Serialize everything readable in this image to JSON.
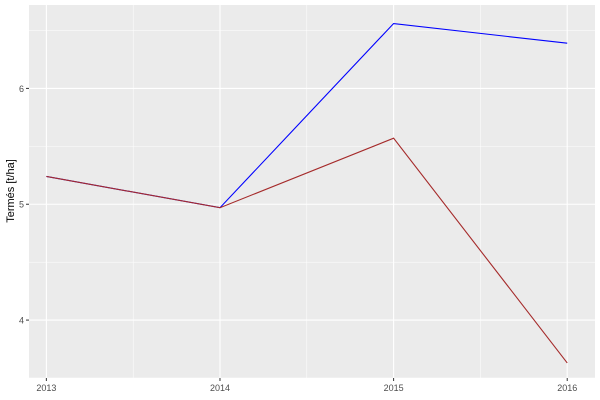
{
  "chart_data": {
    "type": "line",
    "title": "",
    "xlabel": "",
    "ylabel": "Termés [t/ha]",
    "x": [
      2013,
      2014,
      2015,
      2016
    ],
    "x_tick_labels": [
      "2013",
      "2014",
      "2015",
      "2016"
    ],
    "y_ticks": [
      4,
      5,
      6
    ],
    "y_tick_labels": [
      "4",
      "5",
      "6"
    ],
    "ylim": [
      3.5,
      6.72
    ],
    "xlim": [
      2012.9,
      2016.16
    ],
    "grid": true,
    "legend": "none",
    "series": [
      {
        "color": "#0000ff",
        "values": [
          5.24,
          4.97,
          6.56,
          6.39
        ]
      },
      {
        "color": "#a52a2a",
        "values": [
          5.24,
          4.97,
          5.57,
          3.63
        ]
      }
    ]
  }
}
